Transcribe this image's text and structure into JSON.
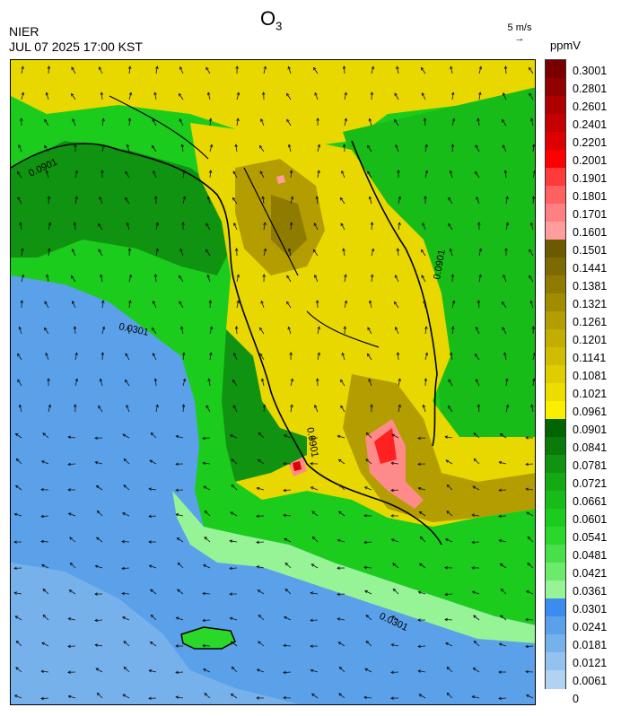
{
  "header": {
    "title_main": "O",
    "title_sub": "3",
    "org": "NIER",
    "datetime": "JUL 07 2025 17:00 KST",
    "wind_ref_label": "5 m/s",
    "wind_ref_arrow": "→",
    "unit": "ppmV"
  },
  "colorbar": {
    "labels": [
      "0.3001",
      "0.2801",
      "0.2601",
      "0.2401",
      "0.2201",
      "0.2001",
      "0.1901",
      "0.1801",
      "0.1701",
      "0.1601",
      "0.1501",
      "0.1441",
      "0.1381",
      "0.1321",
      "0.1261",
      "0.1201",
      "0.1141",
      "0.1081",
      "0.1021",
      "0.0961",
      "0.0901",
      "0.0841",
      "0.0781",
      "0.0721",
      "0.0661",
      "0.0601",
      "0.0541",
      "0.0481",
      "0.0421",
      "0.0361",
      "0.0301",
      "0.0241",
      "0.0181",
      "0.0121",
      "0.0061",
      "0"
    ],
    "colors": [
      "#7a0000",
      "#930000",
      "#ad0000",
      "#c40000",
      "#de0000",
      "#fb0000",
      "#ff3a3a",
      "#ff6060",
      "#ff8080",
      "#ff9c9c",
      "#6b5a00",
      "#7d6a00",
      "#8f7b00",
      "#a18c00",
      "#b39d00",
      "#c3ad00",
      "#d1bd00",
      "#dfcd00",
      "#ecdc00",
      "#fbee00",
      "#006400",
      "#0a7a0a",
      "#109310",
      "#14aa14",
      "#18bc18",
      "#1ccc1c",
      "#2ad82a",
      "#48e048",
      "#6cea6c",
      "#96f396",
      "#3a8dee",
      "#5aa1ea",
      "#76b1ec",
      "#93c2ee",
      "#b1d3f1"
    ]
  },
  "map": {
    "contour_labels": [
      "0.0301",
      "0.0901",
      "0.0901",
      "0.0901",
      "0.0301"
    ],
    "colors": {
      "sea_low": "#5aa1ea",
      "sea_mid": "#76b1ec",
      "coast_green": "#2ad82a",
      "green_dark": "#109310",
      "yellow": "#e8d800",
      "olive": "#9c8a00",
      "hot_pink": "#ff8a8a",
      "hot_red": "#ff2020"
    }
  }
}
